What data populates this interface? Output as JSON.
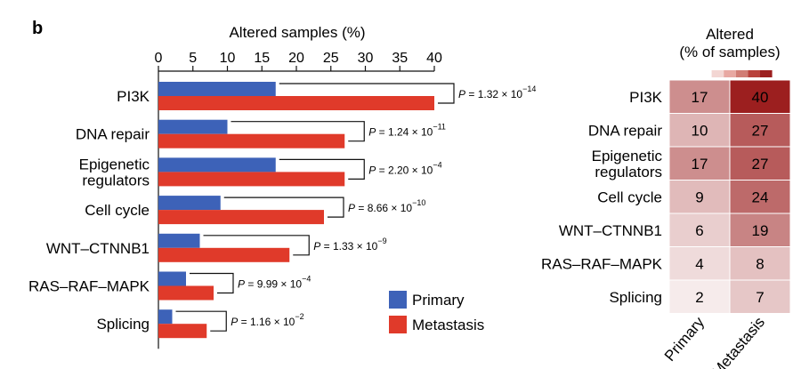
{
  "panel_label": "b",
  "chart_data": [
    {
      "type": "bar",
      "orientation": "horizontal",
      "xlabel": "Altered samples (%)",
      "xlim": [
        0,
        40
      ],
      "xticks": [
        "0",
        "5",
        "10",
        "15",
        "20",
        "25",
        "30",
        "35",
        "40"
      ],
      "categories": [
        "PI3K",
        "DNA repair",
        "Epigenetic regulators",
        "Cell cycle",
        "WNT–CTNNB1",
        "RAS–RAF–MAPK",
        "Splicing"
      ],
      "category_lines": [
        [
          "PI3K"
        ],
        [
          "DNA repair"
        ],
        [
          "Epigenetic",
          "regulators"
        ],
        [
          "Cell cycle"
        ],
        [
          "WNT–CTNNB1"
        ],
        [
          "RAS–RAF–MAPK"
        ],
        [
          "Splicing"
        ]
      ],
      "series": [
        {
          "name": "Primary",
          "color": "#3d62b8",
          "values": [
            17,
            10,
            17,
            9,
            6,
            4,
            2
          ]
        },
        {
          "name": "Metastasis",
          "color": "#e03a2a",
          "values": [
            40,
            27,
            27,
            24,
            19,
            8,
            7
          ]
        }
      ],
      "annotations": [
        {
          "prefix": "P",
          "text": " = 1.32 × 10",
          "exp": "−14"
        },
        {
          "prefix": "P",
          "text": " = 1.24 × 10",
          "exp": "−11"
        },
        {
          "prefix": "P",
          "text": " = 2.20 × 10",
          "exp": "−4"
        },
        {
          "prefix": "P",
          "text": " = 8.66 × 10",
          "exp": "−10"
        },
        {
          "prefix": "P",
          "text": " = 1.33 × 10",
          "exp": "−9"
        },
        {
          "prefix": "P",
          "text": " = 9.99 × 10",
          "exp": "−4"
        },
        {
          "prefix": "P",
          "text": " = 1.16 × 10",
          "exp": "−2"
        }
      ],
      "legend_position": "bottom-right"
    },
    {
      "type": "heatmap",
      "title_lines": [
        "Altered",
        "(% of samples)"
      ],
      "rows": [
        "PI3K",
        "DNA repair",
        "Epigenetic regulators",
        "Cell cycle",
        "WNT–CTNNB1",
        "RAS–RAF–MAPK",
        "Splicing"
      ],
      "row_lines": [
        [
          "PI3K"
        ],
        [
          "DNA repair"
        ],
        [
          "Epigenetic",
          "regulators"
        ],
        [
          "Cell cycle"
        ],
        [
          "WNT–CTNNB1"
        ],
        [
          "RAS–RAF–MAPK"
        ],
        [
          "Splicing"
        ]
      ],
      "columns": [
        "Primary",
        "Metastasis"
      ],
      "values": [
        [
          17,
          40
        ],
        [
          10,
          27
        ],
        [
          17,
          27
        ],
        [
          9,
          24
        ],
        [
          6,
          19
        ],
        [
          4,
          8
        ],
        [
          2,
          7
        ]
      ],
      "scale_colors": [
        "#ffffff",
        "#f3d6d3",
        "#e8a8a2",
        "#d17d75",
        "#b9423c",
        "#9c1f1f"
      ]
    }
  ]
}
